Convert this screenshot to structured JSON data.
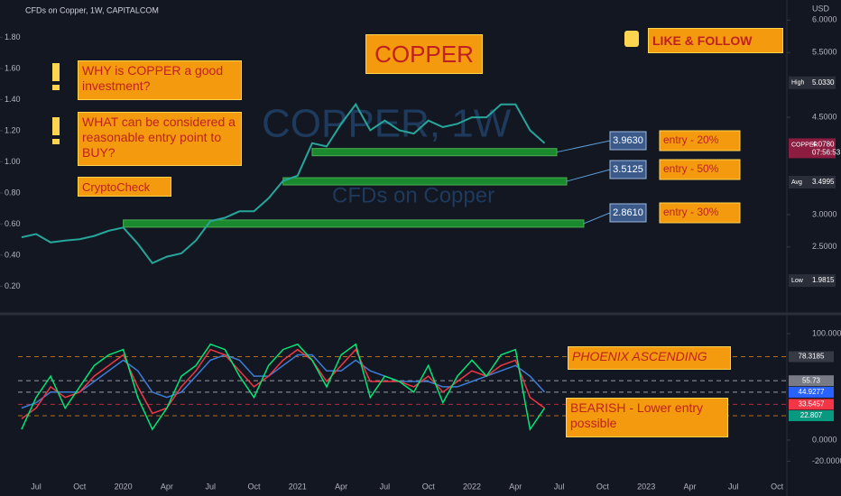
{
  "header": {
    "symbol": "CFDs on Copper, 1W, CAPITALCOM",
    "currency": "USD"
  },
  "watermark": {
    "title": "COPPER, 1W",
    "subtitle": "CFDs on Copper"
  },
  "annotations": {
    "title": "COPPER",
    "follow": "LIKE & FOLLOW",
    "question1": "WHY is COPPER a good investment?",
    "question2": "WHAT can be considered a reasonable entry point to BUY?",
    "author": "CryptoCheck",
    "phoenix": "PHOENIX ASCENDING",
    "bearish": "BEARISH - Lower entry possible"
  },
  "chart_data": [
    {
      "type": "line",
      "series": [
        {
          "color": "#26a69a",
          "axis": "y2",
          "values": [
            2.65,
            2.7,
            2.57,
            2.6,
            2.62,
            2.67,
            2.75,
            2.8,
            2.55,
            2.25,
            2.35,
            2.4,
            2.6,
            2.9,
            2.95,
            3.05,
            3.05,
            3.25,
            3.52,
            3.6,
            4.1,
            4.05,
            4.4,
            4.7,
            4.3,
            4.45,
            4.3,
            4.25,
            4.45,
            4.35,
            4.4,
            4.5,
            4.5,
            4.7,
            4.7,
            4.3,
            4.1,
            null,
            null,
            null,
            null,
            null,
            null,
            null,
            null,
            null,
            null,
            null,
            null,
            null,
            null,
            null,
            null,
            null
          ]
        }
      ],
      "ylim": [
        0.04,
        2.04
      ],
      "yticks": [
        {
          "value": 1.8,
          "label": "1.80"
        },
        {
          "value": 1.6,
          "label": "1.60"
        },
        {
          "value": 1.4,
          "label": "1.40"
        },
        {
          "value": 1.2,
          "label": "1.20"
        },
        {
          "value": 1.0,
          "label": "1.00"
        },
        {
          "value": 0.8,
          "label": "0.80"
        },
        {
          "value": 0.6,
          "label": "0.60"
        },
        {
          "value": 0.4,
          "label": "0.40"
        },
        {
          "value": 0.2,
          "label": "0.20"
        }
      ],
      "y2lim": [
        1.51,
        6.31
      ],
      "y2ticks": [
        {
          "value": 6,
          "label": "6.0000"
        },
        {
          "value": 5.5,
          "label": "5.5000"
        },
        {
          "value": 4.5,
          "label": "4.5000"
        },
        {
          "value": 3,
          "label": "3.0000"
        },
        {
          "value": 2.5,
          "label": "2.5000"
        }
      ],
      "price_tags": [
        {
          "name": "High",
          "value": 5.033,
          "label": "5.0330",
          "color": "#2a2e39"
        },
        {
          "name": "COPPER",
          "value": 4.078,
          "label": "4.0780",
          "countdown": "07:56:53",
          "color": "#8c1d40"
        },
        {
          "name": "Avg",
          "value": 3.4995,
          "label": "3.4995",
          "color": "#2a2e39"
        },
        {
          "name": "Low",
          "value": 1.9815,
          "label": "1.9815",
          "color": "#2a2e39"
        }
      ],
      "zones": [
        {
          "value": 3.963,
          "label": "3.9630",
          "text": "entry - 20%"
        },
        {
          "value": 3.5125,
          "label": "3.5125",
          "text": "entry - 50%"
        },
        {
          "value": 2.861,
          "label": "2.8610",
          "text": "entry - 30%"
        }
      ]
    },
    {
      "type": "line",
      "categories": [
        null,
        "Jul",
        null,
        null,
        "Oct",
        null,
        null,
        "2020",
        null,
        null,
        "Apr",
        null,
        null,
        "Jul",
        null,
        null,
        "Oct",
        null,
        null,
        "2021",
        null,
        null,
        "Apr",
        null,
        null,
        "Jul",
        null,
        null,
        "Oct",
        null,
        null,
        "2022",
        null,
        null,
        "Apr",
        null,
        null,
        "Jul",
        null,
        null,
        "Oct",
        null,
        null,
        "2023",
        null,
        null,
        "Apr",
        null,
        null,
        "Jul",
        null,
        null,
        "Oct",
        null
      ],
      "series": [
        {
          "color": "#3d7dd8",
          "values": [
            30,
            35,
            45,
            45,
            45,
            55,
            65,
            75,
            65,
            45,
            40,
            45,
            60,
            75,
            80,
            75,
            60,
            60,
            70,
            80,
            80,
            65,
            65,
            75,
            65,
            60,
            55,
            55,
            55,
            50,
            50,
            55,
            60,
            65,
            70,
            60,
            45,
            null,
            null,
            null,
            null,
            null,
            null,
            null,
            null,
            null,
            null,
            null,
            null,
            null,
            null,
            null,
            null,
            null
          ]
        },
        {
          "color": "#f23645",
          "values": [
            20,
            30,
            50,
            40,
            45,
            60,
            70,
            80,
            50,
            25,
            30,
            50,
            65,
            85,
            80,
            65,
            50,
            60,
            75,
            85,
            75,
            55,
            70,
            85,
            55,
            55,
            55,
            50,
            60,
            45,
            55,
            65,
            60,
            70,
            75,
            40,
            30,
            null,
            null,
            null,
            null,
            null,
            null,
            null,
            null,
            null,
            null,
            null,
            null,
            null,
            null,
            null,
            null,
            null
          ]
        },
        {
          "color": "#00e676",
          "values": [
            10,
            40,
            60,
            30,
            50,
            70,
            80,
            85,
            40,
            10,
            30,
            60,
            70,
            90,
            85,
            60,
            40,
            70,
            85,
            90,
            75,
            50,
            80,
            90,
            40,
            60,
            55,
            45,
            70,
            35,
            60,
            75,
            60,
            80,
            85,
            10,
            30,
            null,
            null,
            null,
            null,
            null,
            null,
            null,
            null,
            null,
            null,
            null,
            null,
            null,
            null,
            null,
            null,
            null
          ]
        }
      ],
      "ylim": [
        -31.4,
        116.9
      ],
      "yticks": [
        {
          "value": 100,
          "label": "100.0000"
        },
        {
          "value": 0,
          "label": "0.0000"
        },
        {
          "value": -20,
          "label": "-20.0000"
        }
      ],
      "levels": [
        {
          "value": 78.3185,
          "color": "#363a45",
          "line": "#f7931a"
        },
        {
          "value": 55.73,
          "color": "#787b86",
          "line": "#d1d4dc"
        },
        {
          "value": 44.9277,
          "color": "#2962ff",
          "line": "#d1d4dc"
        },
        {
          "value": 33.5457,
          "color": "#f23645",
          "line": "#f23645"
        },
        {
          "value": 22.807,
          "color": "#089981",
          "line": "#f7931a"
        }
      ]
    }
  ]
}
